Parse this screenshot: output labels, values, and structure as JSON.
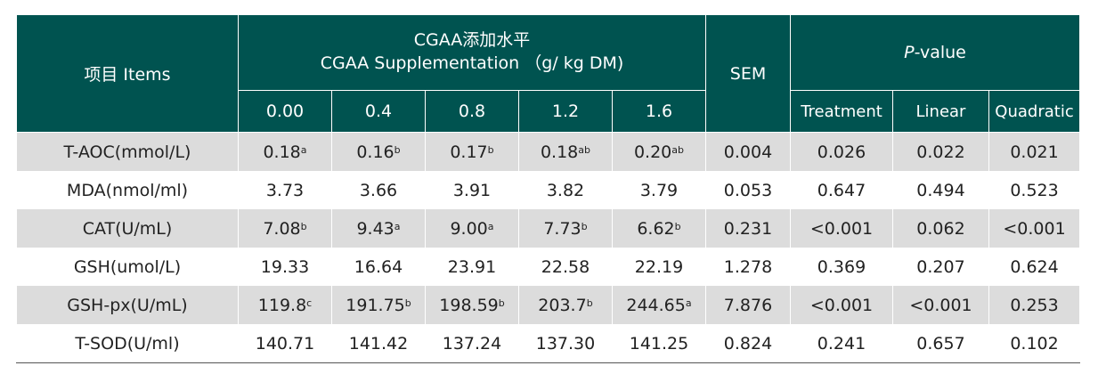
{
  "header": {
    "items_label": "项目 Items",
    "supplement_line1": "CGAA添加水平",
    "supplement_line2": "CGAA Supplementation （g/ kg DM)",
    "sem_label": "SEM",
    "pvalue_italic": "P",
    "pvalue_rest": "-value",
    "levels": [
      "0.00",
      "0.4",
      "0.8",
      "1.2",
      "1.6"
    ],
    "pcols": [
      "Treatment",
      "Linear",
      "Quadratic"
    ]
  },
  "rows": [
    {
      "item": "T-AOC(mmol/L)",
      "vals": [
        {
          "v": "0.18",
          "s": "a"
        },
        {
          "v": "0.16",
          "s": "b"
        },
        {
          "v": "0.17",
          "s": "b"
        },
        {
          "v": "0.18",
          "s": "ab"
        },
        {
          "v": "0.20",
          "s": "ab"
        }
      ],
      "sem": "0.004",
      "treatment": "0.026",
      "linear": "0.022",
      "quadratic": "0.021"
    },
    {
      "item": "MDA(nmol/ml)",
      "vals": [
        {
          "v": "3.73",
          "s": ""
        },
        {
          "v": "3.66",
          "s": ""
        },
        {
          "v": "3.91",
          "s": ""
        },
        {
          "v": "3.82",
          "s": ""
        },
        {
          "v": "3.79",
          "s": ""
        }
      ],
      "sem": "0.053",
      "treatment": "0.647",
      "linear": "0.494",
      "quadratic": "0.523"
    },
    {
      "item": "CAT(U/mL)",
      "vals": [
        {
          "v": "7.08",
          "s": "b"
        },
        {
          "v": "9.43",
          "s": "a"
        },
        {
          "v": "9.00",
          "s": "a"
        },
        {
          "v": "7.73",
          "s": "b"
        },
        {
          "v": "6.62",
          "s": "b"
        }
      ],
      "sem": "0.231",
      "treatment": "<0.001",
      "linear": "0.062",
      "quadratic": "<0.001"
    },
    {
      "item": "GSH(umol/L)",
      "vals": [
        {
          "v": "19.33",
          "s": ""
        },
        {
          "v": "16.64",
          "s": ""
        },
        {
          "v": "23.91",
          "s": ""
        },
        {
          "v": "22.58",
          "s": ""
        },
        {
          "v": "22.19",
          "s": ""
        }
      ],
      "sem": "1.278",
      "treatment": "0.369",
      "linear": "0.207",
      "quadratic": "0.624"
    },
    {
      "item": "GSH-px(U/mL)",
      "vals": [
        {
          "v": "119.8",
          "s": "c"
        },
        {
          "v": "191.75",
          "s": "b"
        },
        {
          "v": "198.59",
          "s": "b"
        },
        {
          "v": "203.7",
          "s": "b"
        },
        {
          "v": "244.65",
          "s": "a"
        }
      ],
      "sem": "7.876",
      "treatment": "<0.001",
      "linear": "<0.001",
      "quadratic": "0.253"
    },
    {
      "item": "T-SOD(U/ml)",
      "vals": [
        {
          "v": "140.71",
          "s": ""
        },
        {
          "v": "141.42",
          "s": ""
        },
        {
          "v": "137.24",
          "s": ""
        },
        {
          "v": "137.30",
          "s": ""
        },
        {
          "v": "141.25",
          "s": ""
        }
      ],
      "sem": "0.824",
      "treatment": "0.241",
      "linear": "0.657",
      "quadratic": "0.102"
    }
  ],
  "colors": {
    "header_bg": "#005350",
    "stripe_bg": "#dcdcdc",
    "text": "#222222"
  }
}
